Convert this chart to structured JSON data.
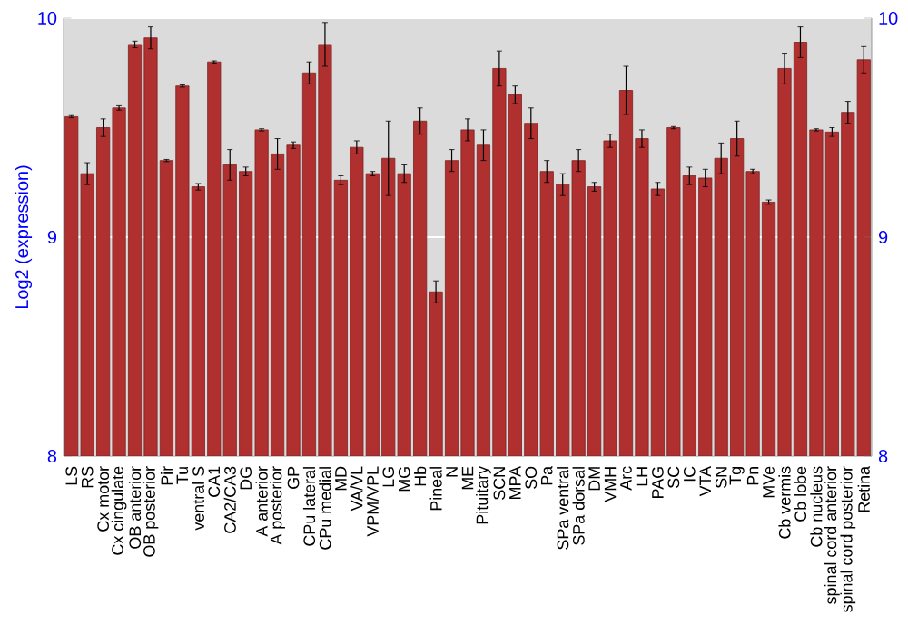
{
  "chart_data": {
    "type": "bar",
    "ylabel": "Log2 (expression)",
    "categories": [
      "LS",
      "RS",
      "Cx motor",
      "Cx cingulate",
      "OB anterior",
      "OB posterior",
      "Pir",
      "Tu",
      "ventral S",
      "CA1",
      "CA2/CA3",
      "DG",
      "A anterior",
      "A posterior",
      "GP",
      "CPu lateral",
      "CPu medial",
      "MD",
      "VA/VL",
      "VPM/VPL",
      "LG",
      "MG",
      "Hb",
      "Pineal",
      "N",
      "ME",
      "Pituitary",
      "SCN",
      "MPA",
      "SO",
      "Pa",
      "SPa ventral",
      "SPa dorsal",
      "DM",
      "VMH",
      "Arc",
      "LH",
      "PAG",
      "SC",
      "IC",
      "VTA",
      "SN",
      "Tg",
      "Pn",
      "MVe",
      "Cb vermis",
      "Cb lobe",
      "Cb nucleus",
      "spinal cord anterior",
      "spinal cord posterior",
      "Retina"
    ],
    "values": [
      9.55,
      9.29,
      9.5,
      9.59,
      9.88,
      9.91,
      9.35,
      9.69,
      9.23,
      9.8,
      9.33,
      9.3,
      9.49,
      9.38,
      9.42,
      9.75,
      9.88,
      9.26,
      9.41,
      9.29,
      9.36,
      9.29,
      9.53,
      8.75,
      9.35,
      9.49,
      9.42,
      9.77,
      9.65,
      9.52,
      9.3,
      9.24,
      9.35,
      9.23,
      9.44,
      9.67,
      9.45,
      9.22,
      9.5,
      9.28,
      9.27,
      9.36,
      9.45,
      9.3,
      9.16,
      9.77,
      9.89,
      9.49,
      9.48,
      9.57,
      9.81
    ],
    "errors": [
      0.005,
      0.05,
      0.04,
      0.01,
      0.015,
      0.05,
      0.005,
      0.005,
      0.015,
      0.005,
      0.07,
      0.02,
      0.005,
      0.07,
      0.015,
      0.05,
      0.1,
      0.02,
      0.03,
      0.01,
      0.17,
      0.04,
      0.06,
      0.05,
      0.05,
      0.05,
      0.07,
      0.08,
      0.04,
      0.07,
      0.05,
      0.05,
      0.05,
      0.02,
      0.03,
      0.11,
      0.04,
      0.03,
      0.005,
      0.04,
      0.04,
      0.07,
      0.08,
      0.01,
      0.01,
      0.07,
      0.07,
      0.005,
      0.02,
      0.05,
      0.06
    ],
    "color": "#b03030",
    "ylim": [
      8,
      10
    ],
    "yticks": [
      8,
      9,
      10
    ],
    "y2lim": [
      8,
      10
    ],
    "y2ticks": [
      8,
      9,
      10
    ],
    "grid": "y"
  }
}
